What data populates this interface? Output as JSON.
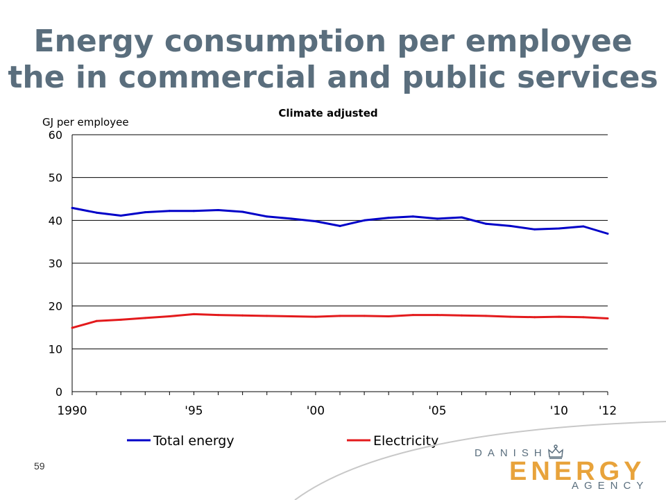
{
  "slide": {
    "title_line1": "Energy consumption per employee",
    "title_line2": "the in commercial and public services",
    "page_number": "59"
  },
  "logo": {
    "line1": "DANISH",
    "line2": "ENERGY",
    "line3": "AGENCY",
    "line2_color": "#e8a33b",
    "text_color": "#5a6e7d"
  },
  "colors": {
    "title": "#5a6e7d",
    "total_energy": "#0000c8",
    "electricity": "#e31a1c"
  },
  "chart_data": {
    "type": "line",
    "title": "Climate adjusted",
    "ylabel": "GJ per employee",
    "xlabel": "",
    "ylim": [
      0,
      60
    ],
    "yticks": [
      0,
      10,
      20,
      30,
      40,
      50,
      60
    ],
    "xlim": [
      1990,
      2013
    ],
    "xtick_values": [
      1990,
      1995,
      2000,
      2005,
      2010,
      2012
    ],
    "xtick_labels": [
      "1990",
      "'95",
      "'00",
      "'05",
      "'10",
      "'12"
    ],
    "grid": "horizontal",
    "legend": "bottom",
    "x": [
      1990,
      1991,
      1992,
      1993,
      1994,
      1995,
      1996,
      1997,
      1998,
      1999,
      2000,
      2001,
      2002,
      2003,
      2004,
      2005,
      2006,
      2007,
      2008,
      2009,
      2010,
      2011,
      2012
    ],
    "series": [
      {
        "name": "Total energy",
        "color": "#0000c8",
        "values": [
          42.9,
          41.8,
          41.1,
          41.9,
          42.2,
          42.2,
          42.4,
          42.0,
          40.9,
          40.4,
          39.8,
          38.7,
          40.0,
          40.6,
          40.9,
          40.4,
          40.7,
          39.2,
          38.7,
          37.9,
          38.1,
          38.6,
          36.9
        ]
      },
      {
        "name": "Electricity",
        "color": "#e31a1c",
        "values": [
          14.9,
          16.5,
          16.8,
          17.2,
          17.6,
          18.1,
          17.9,
          17.8,
          17.7,
          17.6,
          17.5,
          17.7,
          17.7,
          17.6,
          17.9,
          17.9,
          17.8,
          17.7,
          17.5,
          17.4,
          17.5,
          17.4,
          17.1
        ]
      }
    ]
  }
}
